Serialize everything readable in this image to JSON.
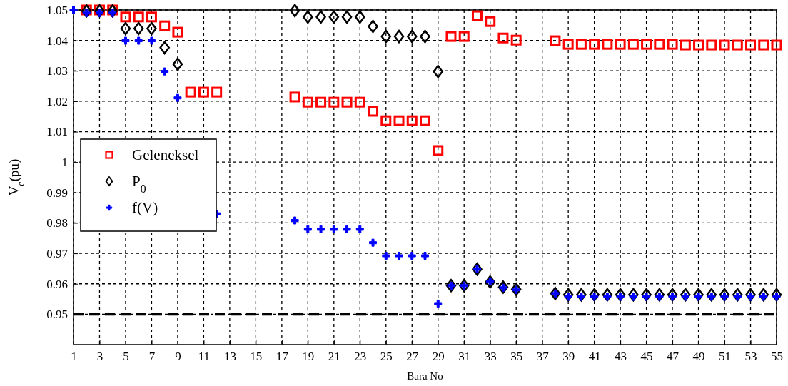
{
  "chart_data": {
    "type": "scatter",
    "xlabel": "Bara No",
    "ylabel": "V$_{c}$(pu)",
    "xlim": [
      1,
      55
    ],
    "xticks": [
      1,
      3,
      5,
      7,
      9,
      11,
      13,
      15,
      17,
      19,
      21,
      23,
      25,
      27,
      29,
      31,
      33,
      35,
      37,
      39,
      41,
      43,
      45,
      47,
      49,
      51,
      53,
      55
    ],
    "ylim": [
      0.94,
      1.05
    ],
    "yticks": [
      0.95,
      0.96,
      0.97,
      0.98,
      0.99,
      1,
      1.01,
      1.02,
      1.03,
      1.04,
      1.05
    ],
    "grid": true,
    "legend": "left",
    "ref_lines": [
      {
        "axis": "y",
        "value": 0.95,
        "color": "#000000",
        "line_style": "dashed"
      }
    ],
    "series": [
      {
        "name": "Geleneksel",
        "color": "#ff0000",
        "marker": "square",
        "x": [
          2,
          3,
          4,
          5,
          6,
          7,
          8,
          9,
          10,
          11,
          12,
          18,
          19,
          20,
          21,
          22,
          23,
          24,
          25,
          26,
          27,
          28,
          29,
          30,
          31,
          32,
          33,
          34,
          35,
          38,
          39,
          40,
          41,
          42,
          43,
          44,
          45,
          46,
          47,
          48,
          49,
          50,
          51,
          52,
          53,
          54,
          55
        ],
        "values": [
          1.05,
          1.05,
          1.05,
          1.0477,
          1.0477,
          1.0477,
          1.0448,
          1.0427,
          1.023,
          1.023,
          1.023,
          1.0214,
          1.0197,
          1.0197,
          1.0197,
          1.0197,
          1.0197,
          1.0167,
          1.0136,
          1.0136,
          1.0136,
          1.0136,
          1.0038,
          1.0413,
          1.0413,
          1.0481,
          1.0462,
          1.0408,
          1.0401,
          1.0399,
          1.0387,
          1.0387,
          1.0387,
          1.0387,
          1.0387,
          1.0387,
          1.0387,
          1.0387,
          1.0387,
          1.0385,
          1.0385,
          1.0385,
          1.0385,
          1.0385,
          1.0385,
          1.0385,
          1.0385
        ]
      },
      {
        "name": "P$_{0}$",
        "color": "#000000",
        "marker": "diamond",
        "x": [
          2,
          3,
          4,
          5,
          6,
          7,
          8,
          9,
          18,
          19,
          20,
          21,
          22,
          23,
          24,
          25,
          26,
          27,
          28,
          29,
          30,
          31,
          32,
          33,
          34,
          35,
          38,
          39,
          40,
          41,
          42,
          43,
          44,
          45,
          46,
          47,
          48,
          49,
          50,
          51,
          52,
          53,
          54,
          55
        ],
        "values": [
          1.0497,
          1.0497,
          1.0497,
          1.0439,
          1.0439,
          1.0439,
          1.0376,
          1.0322,
          1.0498,
          1.0477,
          1.0477,
          1.0477,
          1.0477,
          1.0477,
          1.0446,
          1.0413,
          1.0413,
          1.0413,
          1.0413,
          1.0298,
          0.9594,
          0.9594,
          0.9648,
          0.9606,
          0.9589,
          0.9582,
          0.9568,
          0.9564,
          0.9564,
          0.9564,
          0.9564,
          0.9564,
          0.9564,
          0.9564,
          0.9564,
          0.9564,
          0.9564,
          0.9564,
          0.9564,
          0.9564,
          0.9564,
          0.9564,
          0.9564,
          0.9564
        ]
      },
      {
        "name": "f(V)",
        "color": "#0000ff",
        "marker": "cross",
        "x": [
          1,
          2,
          3,
          4,
          5,
          6,
          7,
          8,
          9,
          12,
          18,
          19,
          20,
          21,
          22,
          23,
          24,
          25,
          26,
          27,
          28,
          29,
          30,
          31,
          32,
          33,
          34,
          35,
          38,
          39,
          40,
          41,
          42,
          43,
          44,
          45,
          46,
          47,
          48,
          49,
          50,
          51,
          52,
          53,
          54,
          55
        ],
        "values": [
          1.05,
          1.049,
          1.049,
          1.049,
          1.0399,
          1.0399,
          1.0399,
          1.0298,
          1.0211,
          0.983,
          0.9808,
          0.9779,
          0.9779,
          0.9779,
          0.9779,
          0.9779,
          0.9735,
          0.9692,
          0.9692,
          0.9692,
          0.9692,
          0.9535,
          0.9594,
          0.9594,
          0.9648,
          0.9608,
          0.9587,
          0.958,
          0.9568,
          0.9557,
          0.9557,
          0.9557,
          0.9557,
          0.9557,
          0.9557,
          0.9557,
          0.9557,
          0.9557,
          0.9557,
          0.9557,
          0.9557,
          0.9557,
          0.9557,
          0.9557,
          0.9557,
          0.9557
        ]
      }
    ]
  }
}
